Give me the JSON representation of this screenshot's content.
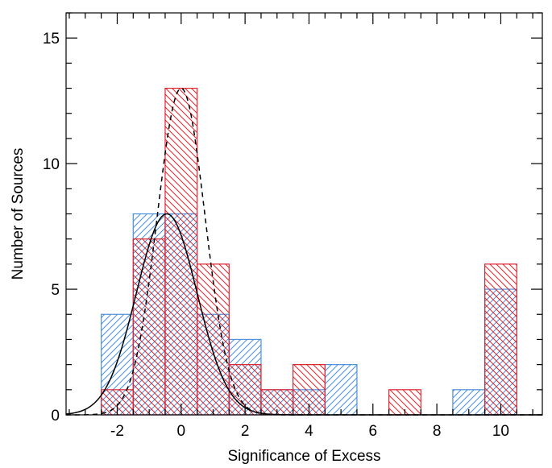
{
  "chart_data": {
    "type": "bar",
    "title": "",
    "xlabel": "Significance of Excess",
    "ylabel": "Number of Sources",
    "xlim": [
      -3.6,
      11.3
    ],
    "ylim": [
      0,
      16
    ],
    "grid": false,
    "legend": "none",
    "x_ticks": [
      "-2",
      "0",
      "2",
      "4",
      "6",
      "8",
      "10"
    ],
    "x_tick_values": [
      -2,
      0,
      2,
      4,
      6,
      8,
      10
    ],
    "y_ticks": [
      "0",
      "5",
      "10",
      "15"
    ],
    "y_tick_values": [
      0,
      5,
      10,
      15
    ],
    "bin_width": 1,
    "series": [
      {
        "color": "#4a8fe0",
        "hatch": "forward-diagonal",
        "bin_starts": [
          -2.5,
          -1.5,
          -0.5,
          0.5,
          1.5,
          2.5,
          3.5,
          4.5,
          5.5,
          6.5,
          7.5,
          8.5,
          9.5
        ],
        "values": [
          4,
          8,
          8,
          4,
          3,
          1,
          1,
          2,
          0,
          0,
          0,
          1,
          5
        ]
      },
      {
        "color": "#e0252e",
        "hatch": "back-diagonal",
        "bin_starts": [
          -2.5,
          -1.5,
          -0.5,
          0.5,
          1.5,
          2.5,
          3.5,
          4.5,
          5.5,
          6.5,
          7.5,
          8.5,
          9.5
        ],
        "values": [
          1,
          7,
          13,
          6,
          2,
          1,
          2,
          0,
          0,
          1,
          0,
          0,
          6
        ]
      }
    ],
    "curves": [
      {
        "style": "solid",
        "color": "#000000",
        "amplitude": 8.0,
        "mean": -0.45,
        "sigma": 0.95
      },
      {
        "style": "dashed",
        "color": "#000000",
        "amplitude": 13.0,
        "mean": 0.0,
        "sigma": 0.75
      }
    ]
  }
}
